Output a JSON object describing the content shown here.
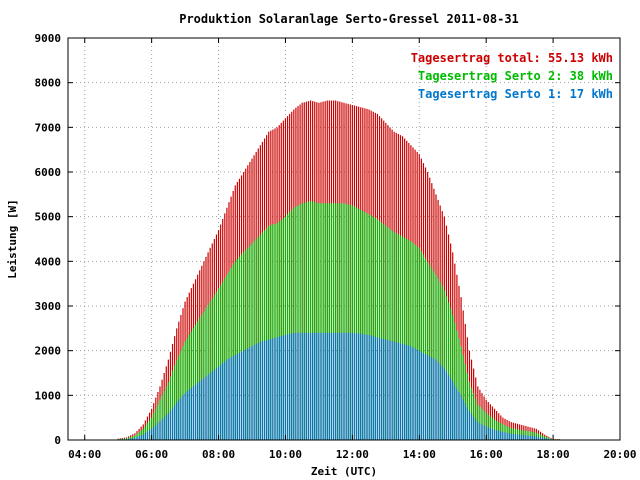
{
  "chart_data": {
    "type": "bar",
    "title": "Produktion Solaranlage Serto-Gressel 2011-08-31",
    "xlabel": "Zeit (UTC)",
    "ylabel": "Leistung [W]",
    "xlim_hours": [
      3.5,
      20.0
    ],
    "ylim": [
      0,
      9000
    ],
    "grid": true,
    "legend_position": "top-right",
    "x_ticks": [
      {
        "hour": 4,
        "label": "04:00"
      },
      {
        "hour": 6,
        "label": "06:00"
      },
      {
        "hour": 8,
        "label": "08:00"
      },
      {
        "hour": 10,
        "label": "10:00"
      },
      {
        "hour": 12,
        "label": "12:00"
      },
      {
        "hour": 14,
        "label": "14:00"
      },
      {
        "hour": 16,
        "label": "16:00"
      },
      {
        "hour": 18,
        "label": "18:00"
      },
      {
        "hour": 20,
        "label": "20:00"
      }
    ],
    "y_ticks": [
      {
        "value": 0,
        "label": "0"
      },
      {
        "value": 1000,
        "label": "1000"
      },
      {
        "value": 2000,
        "label": "2000"
      },
      {
        "value": 3000,
        "label": "3000"
      },
      {
        "value": 4000,
        "label": "4000"
      },
      {
        "value": 5000,
        "label": "5000"
      },
      {
        "value": 6000,
        "label": "6000"
      },
      {
        "value": 7000,
        "label": "7000"
      },
      {
        "value": 8000,
        "label": "8000"
      },
      {
        "value": 9000,
        "label": "9000"
      }
    ],
    "legend": [
      {
        "label": "Tagesertrag total: 55.13 kWh",
        "color": "#cc0000"
      },
      {
        "label": "Tagesertrag Serto 2: 38 kWh",
        "color": "#00bb00"
      },
      {
        "label": "Tagesertrag Serto 1: 17 kWh",
        "color": "#0077cc"
      }
    ],
    "x_hours": [
      5.0,
      5.25,
      5.5,
      5.75,
      6.0,
      6.25,
      6.5,
      6.75,
      7.0,
      7.25,
      7.5,
      7.75,
      8.0,
      8.25,
      8.5,
      8.75,
      9.0,
      9.25,
      9.5,
      9.75,
      10.0,
      10.25,
      10.5,
      10.75,
      11.0,
      11.25,
      11.5,
      11.75,
      12.0,
      12.25,
      12.5,
      12.75,
      13.0,
      13.25,
      13.5,
      13.75,
      14.0,
      14.25,
      14.5,
      14.75,
      15.0,
      15.25,
      15.5,
      15.75,
      16.0,
      16.25,
      16.5,
      16.75,
      17.0,
      17.25,
      17.5,
      17.75,
      18.0
    ],
    "series": [
      {
        "name": "Tagesertrag total: 55.13 kWh",
        "color": "#cc0000",
        "values": [
          30,
          60,
          150,
          350,
          700,
          1200,
          1800,
          2500,
          3100,
          3500,
          3900,
          4300,
          4700,
          5200,
          5700,
          6000,
          6300,
          6600,
          6900,
          7000,
          7200,
          7400,
          7550,
          7600,
          7550,
          7600,
          7600,
          7550,
          7500,
          7450,
          7400,
          7300,
          7100,
          6900,
          6800,
          6600,
          6400,
          6000,
          5500,
          5000,
          4200,
          3200,
          2000,
          1200,
          900,
          700,
          500,
          400,
          350,
          300,
          250,
          120,
          20
        ]
      },
      {
        "name": "Tagesertrag Serto 2: 38 kWh",
        "color": "#00bb00",
        "values": [
          20,
          40,
          100,
          250,
          500,
          900,
          1300,
          1800,
          2200,
          2500,
          2800,
          3100,
          3400,
          3700,
          4000,
          4200,
          4400,
          4600,
          4800,
          4850,
          5000,
          5200,
          5300,
          5350,
          5300,
          5300,
          5300,
          5300,
          5250,
          5150,
          5050,
          4950,
          4800,
          4650,
          4550,
          4450,
          4300,
          4000,
          3700,
          3350,
          2800,
          2100,
          1300,
          800,
          600,
          450,
          350,
          270,
          230,
          200,
          160,
          80,
          15
        ]
      },
      {
        "name": "Tagesertrag Serto 1: 17 kWh",
        "color": "#0077cc",
        "values": [
          10,
          20,
          50,
          120,
          250,
          420,
          600,
          850,
          1050,
          1200,
          1350,
          1500,
          1650,
          1800,
          1900,
          2000,
          2100,
          2200,
          2250,
          2300,
          2350,
          2400,
          2400,
          2400,
          2400,
          2400,
          2400,
          2400,
          2400,
          2380,
          2350,
          2300,
          2250,
          2200,
          2150,
          2100,
          2000,
          1900,
          1800,
          1600,
          1300,
          1000,
          650,
          400,
          300,
          230,
          180,
          140,
          120,
          100,
          80,
          40,
          8
        ]
      }
    ]
  }
}
